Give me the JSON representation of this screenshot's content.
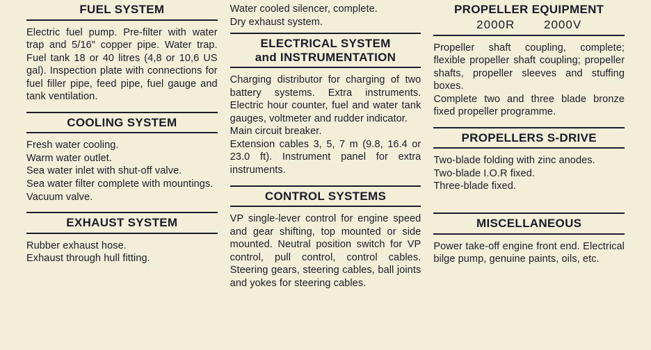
{
  "col1": {
    "sections": [
      {
        "title": "FUEL SYSTEM",
        "body": "Electric fuel pump. Pre-filter with water trap and 5/16\" copper pipe. Water trap. Fuel tank 18 or 40 litres (4,8 or 10,6 US gal). Inspection plate with connections for fuel filler pipe, feed pipe, fuel gauge and tank ventilation.",
        "justify": true
      },
      {
        "title": "COOLING SYSTEM",
        "body": "Fresh water cooling.\nWarm water outlet.\nSea water inlet with shut-off valve.\nSea water filter complete with mountings.\nVacuum valve.",
        "justify": false
      },
      {
        "title": "EXHAUST SYSTEM",
        "body": "Rubber exhaust hose.\nExhaust through hull fitting.",
        "justify": false
      }
    ]
  },
  "col2": {
    "pre_text": "Water cooled silencer, complete.\nDry exhaust system.",
    "sections": [
      {
        "title": "ELECTRICAL SYSTEM\nand INSTRUMENTATION",
        "body": "Charging distributor for charging of two battery systems. Extra instruments. Electric hour counter, fuel and water tank gauges, voltmeter and rudder indicator.\nMain circuit breaker.\nExtension cables 3, 5, 7 m (9.8, 16.4 or 23.0 ft). Instrument panel for extra instruments.",
        "justify": true
      },
      {
        "title": "CONTROL SYSTEMS",
        "body": "VP single-lever control for engine speed and gear shifting, top mounted or side mounted. Neutral position switch for VP control, pull control, control cables. Steering gears, steering cables, ball joints and yokes for steering cables.",
        "justify": true
      }
    ]
  },
  "col3": {
    "sections": [
      {
        "title": "PROPELLER EQUIPMENT",
        "subtitle_left": "2000R",
        "subtitle_right": "2000V",
        "body": "Propeller shaft coupling, complete; flexible propeller shaft coupling; propeller shafts, propeller sleeves and stuffing boxes.\nComplete two and three blade bronze fixed propeller programme.",
        "justify": true
      },
      {
        "title": "PROPELLERS S-DRIVE",
        "body": "Two-blade folding with zinc anodes.\nTwo-blade I.O.R fixed.\nThree-blade fixed.",
        "justify": false
      },
      {
        "title": "MISCELLANEOUS",
        "body": "Power take-off engine front end. Electrical bilge pump, genuine paints, oils, etc.",
        "justify": true
      }
    ]
  }
}
